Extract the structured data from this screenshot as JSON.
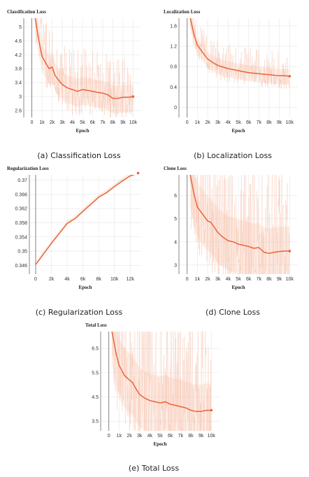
{
  "chart_data": [
    {
      "type": "line",
      "title": "Classification Loss",
      "caption": "(a) Classification Loss",
      "xlabel": "Epoch",
      "ylabel": "",
      "xlim": [
        -800,
        10800
      ],
      "ylim": [
        2.4,
        5.25
      ],
      "x_ticks": [
        0,
        1000,
        2000,
        3000,
        4000,
        5000,
        6000,
        7000,
        8000,
        9000,
        10000
      ],
      "x_tick_labels": [
        "0",
        "1k",
        "2k",
        "3k",
        "4k",
        "5k",
        "6k",
        "7k",
        "8k",
        "9k",
        "10k"
      ],
      "y_ticks": [
        2.6,
        3,
        3.4,
        3.8,
        4.2,
        4.6,
        5
      ],
      "y_tick_labels": [
        "2.6",
        "3",
        "3.4",
        "3.8",
        "4.2",
        "4.6",
        "5"
      ],
      "grid": true,
      "series": [
        {
          "x": [
            300,
            700,
            1000,
            1400,
            1700,
            2000,
            2300,
            2700,
            3000,
            3500,
            4000,
            4500,
            5000,
            5500,
            6000,
            6500,
            7000,
            7500,
            8000,
            8500,
            9000,
            9500,
            10000
          ],
          "values": [
            5.3,
            4.6,
            4.15,
            3.95,
            3.8,
            3.85,
            3.6,
            3.45,
            3.35,
            3.25,
            3.2,
            3.15,
            3.2,
            3.18,
            3.15,
            3.12,
            3.1,
            3.05,
            2.95,
            2.95,
            2.98,
            2.98,
            3.0
          ]
        }
      ]
    },
    {
      "type": "line",
      "title": "Localization Loss",
      "caption": "(b) Localization Loss",
      "xlabel": "Epoch",
      "ylabel": "",
      "xlim": [
        -800,
        10800
      ],
      "ylim": [
        -0.2,
        1.75
      ],
      "x_ticks": [
        0,
        1000,
        2000,
        3000,
        4000,
        5000,
        6000,
        7000,
        8000,
        9000,
        10000
      ],
      "x_tick_labels": [
        "0",
        "1k",
        "2k",
        "3k",
        "4k",
        "5k",
        "6k",
        "7k",
        "8k",
        "9k",
        "10k"
      ],
      "y_ticks": [
        0,
        0.4,
        0.8,
        1.2,
        1.6
      ],
      "y_tick_labels": [
        "0",
        "0.4",
        "0.8",
        "1.2",
        "1.6"
      ],
      "grid": true,
      "series": [
        {
          "x": [
            300,
            700,
            1000,
            1500,
            2000,
            2500,
            3000,
            3500,
            4000,
            4500,
            5000,
            5500,
            6000,
            6500,
            7000,
            7500,
            8000,
            8500,
            9000,
            9500,
            10000
          ],
          "values": [
            1.75,
            1.4,
            1.22,
            1.08,
            0.95,
            0.88,
            0.82,
            0.79,
            0.76,
            0.74,
            0.72,
            0.7,
            0.68,
            0.67,
            0.66,
            0.65,
            0.64,
            0.63,
            0.62,
            0.62,
            0.61
          ]
        }
      ]
    },
    {
      "type": "line",
      "title": "Regularization Loss",
      "caption": "(c) Regularization Loss",
      "xlabel": "Epoch",
      "ylabel": "",
      "xlim": [
        -800,
        13400
      ],
      "ylim": [
        0.3435,
        0.3715
      ],
      "x_ticks": [
        0,
        2000,
        4000,
        6000,
        8000,
        10000,
        12000
      ],
      "x_tick_labels": [
        "0",
        "2k",
        "4k",
        "6k",
        "8k",
        "10k",
        "12k"
      ],
      "y_ticks": [
        0.346,
        0.35,
        0.354,
        0.358,
        0.362,
        0.366,
        0.37
      ],
      "y_tick_labels": [
        "0.346",
        "0.35",
        "0.354",
        "0.358",
        "0.362",
        "0.366",
        "0.37"
      ],
      "grid": true,
      "series": [
        {
          "x": [
            0,
            1000,
            2000,
            3000,
            4000,
            5000,
            6000,
            7000,
            8000,
            9000,
            10000,
            11000,
            12000,
            13000
          ],
          "values": [
            0.3462,
            0.3492,
            0.3522,
            0.355,
            0.3578,
            0.3592,
            0.3612,
            0.3632,
            0.3652,
            0.3665,
            0.3682,
            0.3698,
            0.3712,
            0.372
          ]
        }
      ]
    },
    {
      "type": "line",
      "title": "Clone Loss",
      "caption": "(d) Clone Loss",
      "xlabel": "Epoch",
      "ylabel": "",
      "xlim": [
        -800,
        10800
      ],
      "ylim": [
        2.6,
        6.9
      ],
      "x_ticks": [
        0,
        1000,
        2000,
        3000,
        4000,
        5000,
        6000,
        7000,
        8000,
        9000,
        10000
      ],
      "x_tick_labels": [
        "0",
        "1k",
        "2k",
        "3k",
        "4k",
        "5k",
        "6k",
        "7k",
        "8k",
        "9k",
        "10k"
      ],
      "y_ticks": [
        3,
        4,
        5,
        6
      ],
      "y_tick_labels": [
        "3",
        "4",
        "5",
        "6"
      ],
      "grid": true,
      "series": [
        {
          "x": [
            300,
            700,
            1000,
            1500,
            2000,
            2300,
            2700,
            3000,
            3500,
            4000,
            4500,
            5000,
            5500,
            6000,
            6500,
            7000,
            7500,
            8000,
            8500,
            9000,
            9500,
            10000
          ],
          "values": [
            6.9,
            6.0,
            5.5,
            5.2,
            4.9,
            4.85,
            4.6,
            4.4,
            4.2,
            4.05,
            4.0,
            3.9,
            3.85,
            3.8,
            3.72,
            3.75,
            3.55,
            3.5,
            3.55,
            3.58,
            3.6,
            3.6
          ]
        }
      ]
    },
    {
      "type": "line",
      "title": "Total Loss",
      "caption": "(e) Total Loss",
      "xlabel": "Epoch",
      "ylabel": "",
      "xlim": [
        -800,
        10800
      ],
      "ylim": [
        3.1,
        7.2
      ],
      "x_ticks": [
        0,
        1000,
        2000,
        3000,
        4000,
        5000,
        6000,
        7000,
        8000,
        9000,
        10000
      ],
      "x_tick_labels": [
        "0",
        "1k",
        "2k",
        "3k",
        "4k",
        "5k",
        "6k",
        "7k",
        "8k",
        "9k",
        "10k"
      ],
      "y_ticks": [
        3.5,
        4.5,
        5.5,
        6.5
      ],
      "y_tick_labels": [
        "3.5",
        "4.5",
        "5.5",
        "6.5"
      ],
      "grid": true,
      "series": [
        {
          "x": [
            300,
            700,
            1000,
            1500,
            2000,
            2300,
            2700,
            3000,
            3500,
            4000,
            4500,
            5000,
            5500,
            6000,
            6500,
            7000,
            7500,
            8000,
            8500,
            9000,
            9500,
            10000
          ],
          "values": [
            7.2,
            6.3,
            5.8,
            5.4,
            5.2,
            5.1,
            4.8,
            4.6,
            4.45,
            4.35,
            4.3,
            4.25,
            4.3,
            4.2,
            4.15,
            4.1,
            4.05,
            3.95,
            3.9,
            3.9,
            3.95,
            3.95
          ]
        }
      ]
    }
  ]
}
